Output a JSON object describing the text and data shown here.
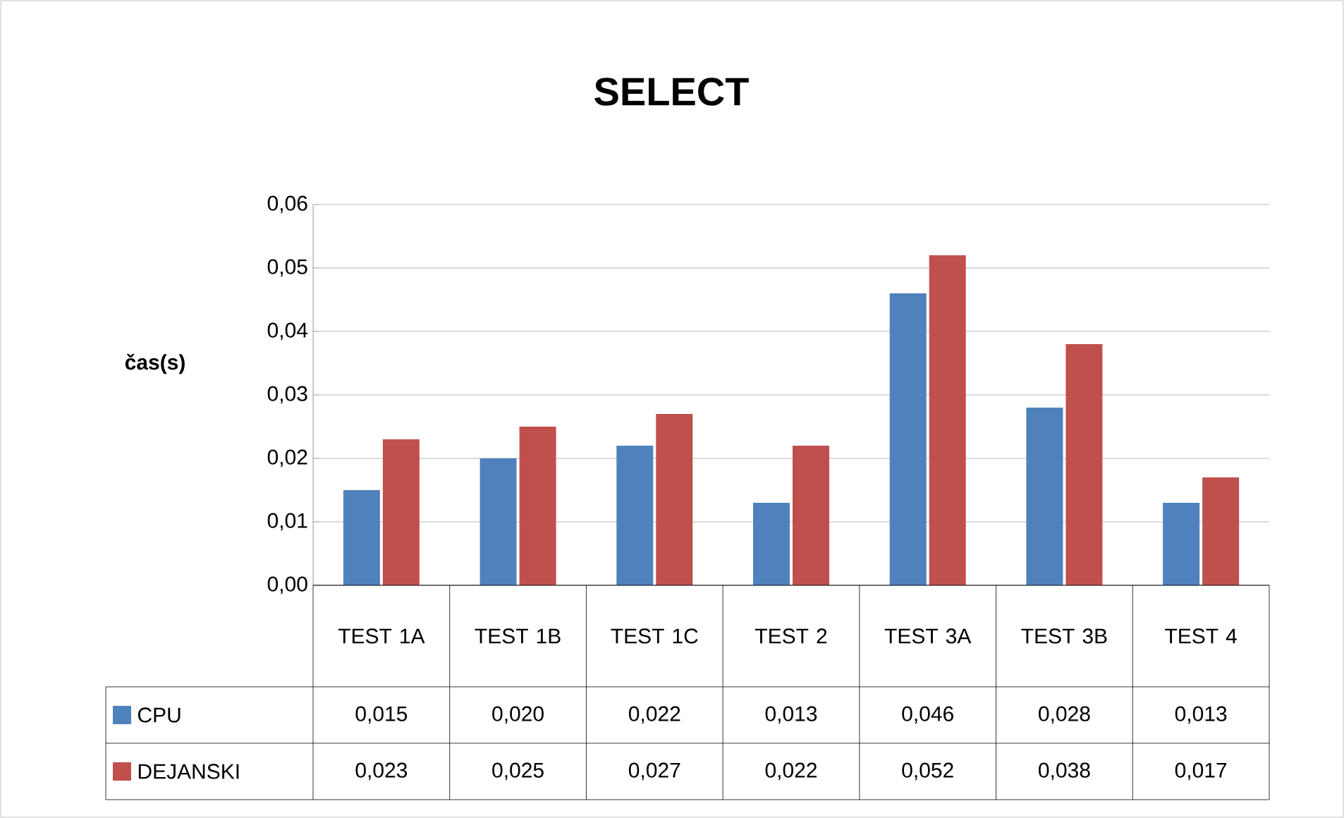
{
  "chart_data": {
    "type": "bar",
    "title": "SELECT",
    "ylabel": "čas(s)",
    "categories": [
      "TEST 1A",
      "TEST 1B",
      "TEST 1C",
      "TEST 2",
      "TEST 3A",
      "TEST 3B",
      "TEST 4"
    ],
    "series": [
      {
        "name": "CPU",
        "color": "#4f81bd",
        "values": [
          0.015,
          0.02,
          0.022,
          0.013,
          0.046,
          0.028,
          0.013
        ],
        "value_labels": [
          "0,015",
          "0,020",
          "0,022",
          "0,013",
          "0,046",
          "0,028",
          "0,013"
        ]
      },
      {
        "name": "DEJANSKI",
        "color": "#c0504d",
        "values": [
          0.023,
          0.025,
          0.027,
          0.022,
          0.052,
          0.038,
          0.017
        ],
        "value_labels": [
          "0,023",
          "0,025",
          "0,027",
          "0,022",
          "0,052",
          "0,038",
          "0,017"
        ]
      }
    ],
    "ylim": [
      0,
      0.06
    ],
    "yticks": [
      {
        "value": 0,
        "label": "0,00"
      },
      {
        "value": 0.01,
        "label": "0,01"
      },
      {
        "value": 0.02,
        "label": "0,02"
      },
      {
        "value": 0.03,
        "label": "0,03"
      },
      {
        "value": 0.04,
        "label": "0,04"
      },
      {
        "value": 0.05,
        "label": "0,05"
      },
      {
        "value": 0.06,
        "label": "0,06"
      }
    ],
    "grid": "y",
    "legend": "bottom"
  }
}
